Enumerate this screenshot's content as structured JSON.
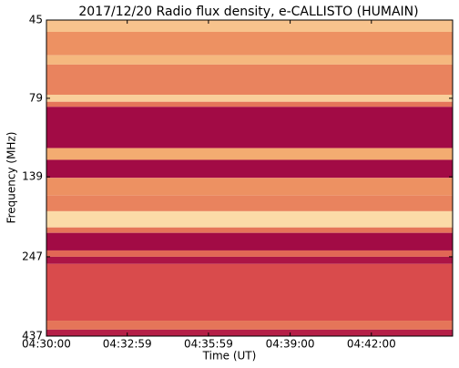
{
  "chart_data": {
    "type": "heatmap",
    "title": "2017/12/20  Radio flux density, e-CALLISTO (HUMAIN)",
    "xlabel": "Time (UT)",
    "ylabel": "Frequency (MHz)",
    "xlim": [
      "04:30:00",
      "04:45:00"
    ],
    "xticks": [
      "04:30:00",
      "04:32:59",
      "04:35:59",
      "04:39:00",
      "04:42:00"
    ],
    "ylim": [
      45,
      437
    ],
    "yticks": [
      45,
      79,
      139,
      247,
      437
    ],
    "log_y": true,
    "y_inverted": true,
    "y_edges": [
      45,
      49,
      58,
      62,
      77,
      81,
      84,
      113,
      123,
      140,
      159,
      178,
      200,
      208,
      236,
      247,
      260,
      391,
      417,
      437
    ],
    "values": [
      0.8,
      0.6,
      0.75,
      0.55,
      0.85,
      0.5,
      0.05,
      0.7,
      0.05,
      0.6,
      0.55,
      0.9,
      0.5,
      0.05,
      0.45,
      0.1,
      0.35,
      0.5,
      0.15
    ],
    "colormap": [
      "#990044",
      "#d8464a",
      "#f2a468",
      "#fff2c4"
    ]
  }
}
